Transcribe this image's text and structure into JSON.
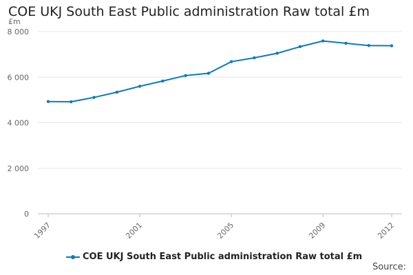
{
  "colors": {
    "series": "#0a7abf",
    "grid": "#e6e6e6",
    "axis": "#bbbbbb"
  },
  "legend": {
    "label": "COE UKJ South East Public administration Raw total £m"
  },
  "footer": {
    "source_label": "Source:"
  },
  "chart_data": {
    "type": "line",
    "title": "COE UKJ South East Public administration Raw total £m",
    "ylabel": "£m",
    "xlabel": "",
    "ylim": [
      0,
      8000
    ],
    "yticks": [
      0,
      2000,
      4000,
      6000,
      8000
    ],
    "ytick_labels": [
      "0",
      "2 000",
      "4 000",
      "6 000",
      "8 000"
    ],
    "xticks": [
      1997,
      2001,
      2005,
      2009,
      2012
    ],
    "grid": true,
    "legend_position": "bottom",
    "series": [
      {
        "name": "COE UKJ South East Public administration Raw total £m",
        "x": [
          1997,
          1998,
          1999,
          2000,
          2001,
          2002,
          2003,
          2004,
          2005,
          2006,
          2007,
          2008,
          2009,
          2010,
          2011,
          2012
        ],
        "values": [
          4930,
          4920,
          5110,
          5340,
          5600,
          5830,
          6070,
          6170,
          6680,
          6850,
          7050,
          7340,
          7590,
          7490,
          7390,
          7380
        ]
      }
    ]
  }
}
